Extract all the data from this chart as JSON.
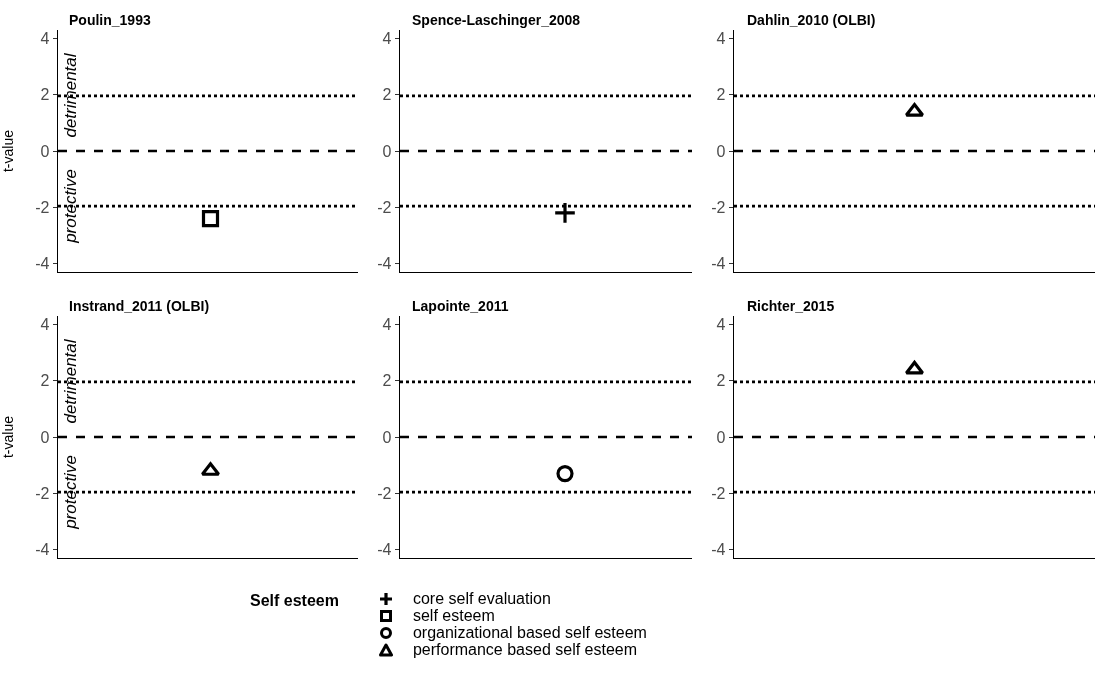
{
  "chart_data": [
    {
      "type": "scatter",
      "title": "Poulin_1993",
      "ylabel": "t-value",
      "categories": [
        null
      ],
      "annotations": [
        "detrimental",
        "protective"
      ],
      "legend": "bottom",
      "legend_title": "Self esteem",
      "tick_labels": "y",
      "series": [
        {
          "name": "self esteem",
          "color": "#000000",
          "marker": "square",
          "values": [
            -2.4
          ]
        }
      ],
      "ylim": [
        -4.3,
        4.3
      ],
      "yticks": [
        -4,
        -2,
        0,
        2,
        4
      ],
      "grid": false,
      "ref_lines": [
        {
          "axis": "y",
          "value": 0,
          "line_style": "dashed",
          "color": "#000000"
        },
        {
          "axis": "y",
          "value": 1.96,
          "line_style": "dotted",
          "color": "#000000"
        },
        {
          "axis": "y",
          "value": -1.96,
          "line_style": "dotted",
          "color": "#000000"
        }
      ]
    },
    {
      "type": "scatter",
      "title": "Spence-Laschinger_2008",
      "categories": [
        null
      ],
      "tick_labels": "y",
      "series": [
        {
          "name": "core self evaluation",
          "color": "#000000",
          "marker": "cross",
          "values": [
            -2.2
          ]
        }
      ],
      "ylim": [
        -4.3,
        4.3
      ],
      "yticks": [
        -4,
        -2,
        0,
        2,
        4
      ],
      "grid": false,
      "ref_lines": [
        {
          "axis": "y",
          "value": 0,
          "line_style": "dashed",
          "color": "#000000"
        },
        {
          "axis": "y",
          "value": 1.96,
          "line_style": "dotted",
          "color": "#000000"
        },
        {
          "axis": "y",
          "value": -1.96,
          "line_style": "dotted",
          "color": "#000000"
        }
      ]
    },
    {
      "type": "scatter",
      "title": "Dahlin_2010 (OLBI)",
      "categories": [
        null
      ],
      "tick_labels": "y",
      "series": [
        {
          "name": "performance based self esteem",
          "color": "#000000",
          "marker": "triangle",
          "values": [
            1.4
          ]
        }
      ],
      "ylim": [
        -4.3,
        4.3
      ],
      "yticks": [
        -4,
        -2,
        0,
        2,
        4
      ],
      "grid": false,
      "ref_lines": [
        {
          "axis": "y",
          "value": 0,
          "line_style": "dashed",
          "color": "#000000"
        },
        {
          "axis": "y",
          "value": 1.96,
          "line_style": "dotted",
          "color": "#000000"
        },
        {
          "axis": "y",
          "value": -1.96,
          "line_style": "dotted",
          "color": "#000000"
        }
      ]
    },
    {
      "type": "scatter",
      "title": "Instrand_2011 (OLBI)",
      "ylabel": "t-value",
      "categories": [
        null
      ],
      "annotations": [
        "detrimental",
        "protective"
      ],
      "tick_labels": "y",
      "series": [
        {
          "name": "performance based self esteem",
          "color": "#000000",
          "marker": "triangle",
          "values": [
            -1.2
          ]
        }
      ],
      "ylim": [
        -4.3,
        4.3
      ],
      "yticks": [
        -4,
        -2,
        0,
        2,
        4
      ],
      "grid": false,
      "ref_lines": [
        {
          "axis": "y",
          "value": 0,
          "line_style": "dashed",
          "color": "#000000"
        },
        {
          "axis": "y",
          "value": 1.96,
          "line_style": "dotted",
          "color": "#000000"
        },
        {
          "axis": "y",
          "value": -1.96,
          "line_style": "dotted",
          "color": "#000000"
        }
      ]
    },
    {
      "type": "scatter",
      "title": "Lapointe_2011",
      "categories": [
        null
      ],
      "tick_labels": "y",
      "series": [
        {
          "name": "organizational based self esteem",
          "color": "#000000",
          "marker": "circle",
          "values": [
            -1.3
          ]
        }
      ],
      "ylim": [
        -4.3,
        4.3
      ],
      "yticks": [
        -4,
        -2,
        0,
        2,
        4
      ],
      "grid": false,
      "ref_lines": [
        {
          "axis": "y",
          "value": 0,
          "line_style": "dashed",
          "color": "#000000"
        },
        {
          "axis": "y",
          "value": 1.96,
          "line_style": "dotted",
          "color": "#000000"
        },
        {
          "axis": "y",
          "value": -1.96,
          "line_style": "dotted",
          "color": "#000000"
        }
      ]
    },
    {
      "type": "scatter",
      "title": "Richter_2015",
      "categories": [
        null
      ],
      "tick_labels": "y",
      "series": [
        {
          "name": "performance based self esteem",
          "color": "#000000",
          "marker": "triangle",
          "values": [
            2.4
          ]
        }
      ],
      "ylim": [
        -4.3,
        4.3
      ],
      "yticks": [
        -4,
        -2,
        0,
        2,
        4
      ],
      "grid": false,
      "ref_lines": [
        {
          "axis": "y",
          "value": 0,
          "line_style": "dashed",
          "color": "#000000"
        },
        {
          "axis": "y",
          "value": 1.96,
          "line_style": "dotted",
          "color": "#000000"
        },
        {
          "axis": "y",
          "value": -1.96,
          "line_style": "dotted",
          "color": "#000000"
        }
      ]
    }
  ]
}
